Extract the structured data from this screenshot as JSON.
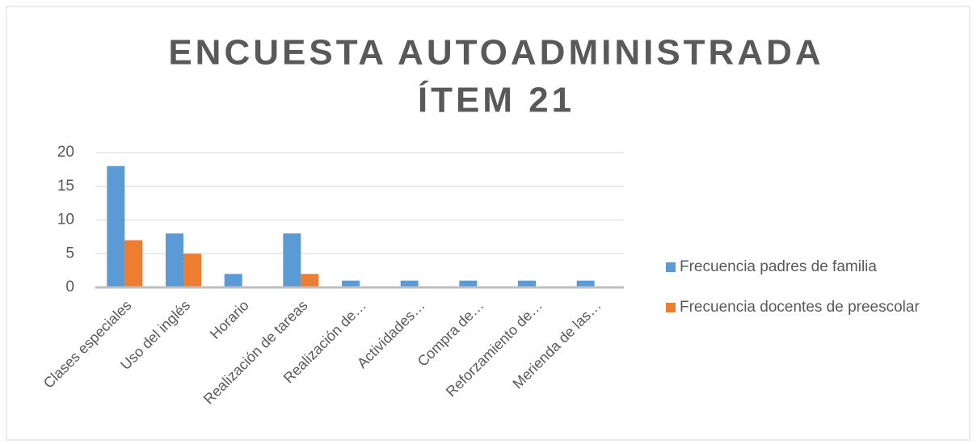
{
  "chart_data": {
    "type": "bar",
    "title": [
      "ENCUESTA AUTOADMINISTRADA",
      "ÍTEM 21"
    ],
    "categories": [
      "Clases especiales",
      "Uso del inglés",
      "Horario",
      "Realización de tareas",
      "Realización de…",
      "Actividades…",
      "Compra de…",
      "Reforzamiento de…",
      "Merienda de las…"
    ],
    "series": [
      {
        "name": "Frecuencia padres de familia",
        "color": "#5b9bd5",
        "values": [
          18,
          8,
          2,
          8,
          1,
          1,
          1,
          1,
          1
        ]
      },
      {
        "name": "Frecuencia docentes de preescolar",
        "color": "#ed7d31",
        "values": [
          7,
          5,
          0,
          2,
          0,
          0,
          0,
          0,
          0
        ]
      }
    ],
    "ylim": [
      0,
      20
    ],
    "yticks": [
      0,
      5,
      10,
      15,
      20
    ],
    "grid": true,
    "legend": "right"
  }
}
